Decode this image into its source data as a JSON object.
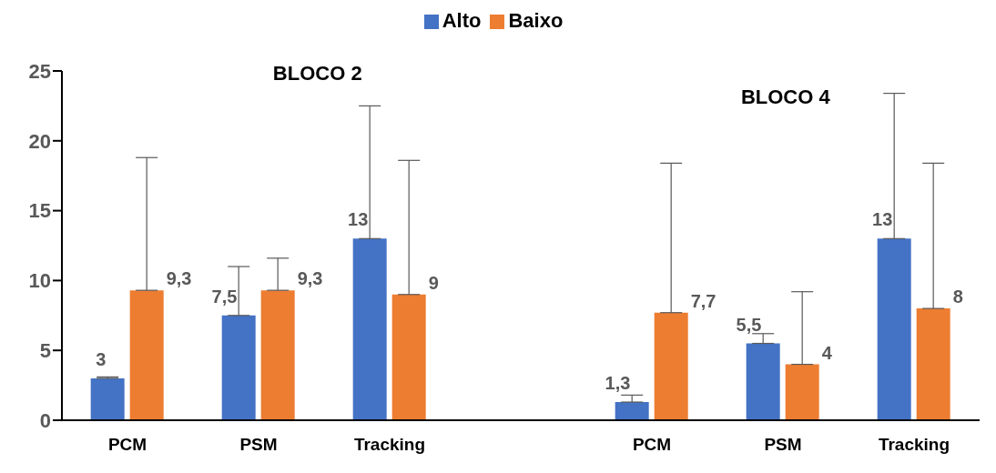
{
  "chart_data": {
    "type": "bar",
    "categories": [
      "PCM",
      "PSM",
      "Tracking",
      null,
      "PCM",
      "PSM",
      "Tracking"
    ],
    "series": [
      {
        "name": "Alto",
        "color": "#4472c4",
        "values": [
          3,
          7.5,
          13,
          null,
          1.3,
          5.5,
          13
        ],
        "value_labels": [
          "3",
          "7,5",
          "13",
          null,
          "1,3",
          "5,5",
          "13"
        ],
        "errors": [
          [
            3,
            3.1
          ],
          [
            7.5,
            11
          ],
          [
            13,
            22.5
          ],
          null,
          [
            1.3,
            1.8
          ],
          [
            5.5,
            6.2
          ],
          [
            13,
            23.4
          ]
        ]
      },
      {
        "name": "Baixo",
        "color": "#ed7d31",
        "values": [
          9.3,
          9.3,
          9,
          null,
          7.7,
          4,
          8
        ],
        "value_labels": [
          "9,3",
          "9,3",
          "9",
          null,
          "7,7",
          "4",
          "8"
        ],
        "errors": [
          [
            9.3,
            18.8
          ],
          [
            9.3,
            11.6
          ],
          [
            9,
            18.6
          ],
          null,
          [
            7.7,
            18.4
          ],
          [
            4,
            9.2
          ],
          [
            8,
            18.4
          ]
        ]
      }
    ],
    "annotations": [
      "BLOCO 2",
      "BLOCO 4"
    ],
    "ylim": [
      0,
      25
    ],
    "yticks": [
      0,
      5,
      10,
      15,
      20,
      25
    ],
    "legend": "top",
    "grid": false
  }
}
